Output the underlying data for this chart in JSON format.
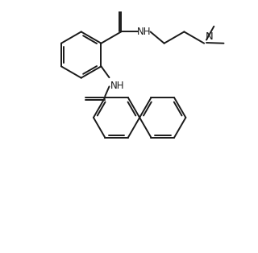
{
  "bg_color": "#ffffff",
  "line_color": "#1a1a1a",
  "line_width": 1.4,
  "font_size": 8.5,
  "figsize": [
    3.2,
    3.14
  ],
  "dpi": 100,
  "xlim": [
    0,
    8.5
  ],
  "ylim": [
    0,
    9.0
  ]
}
